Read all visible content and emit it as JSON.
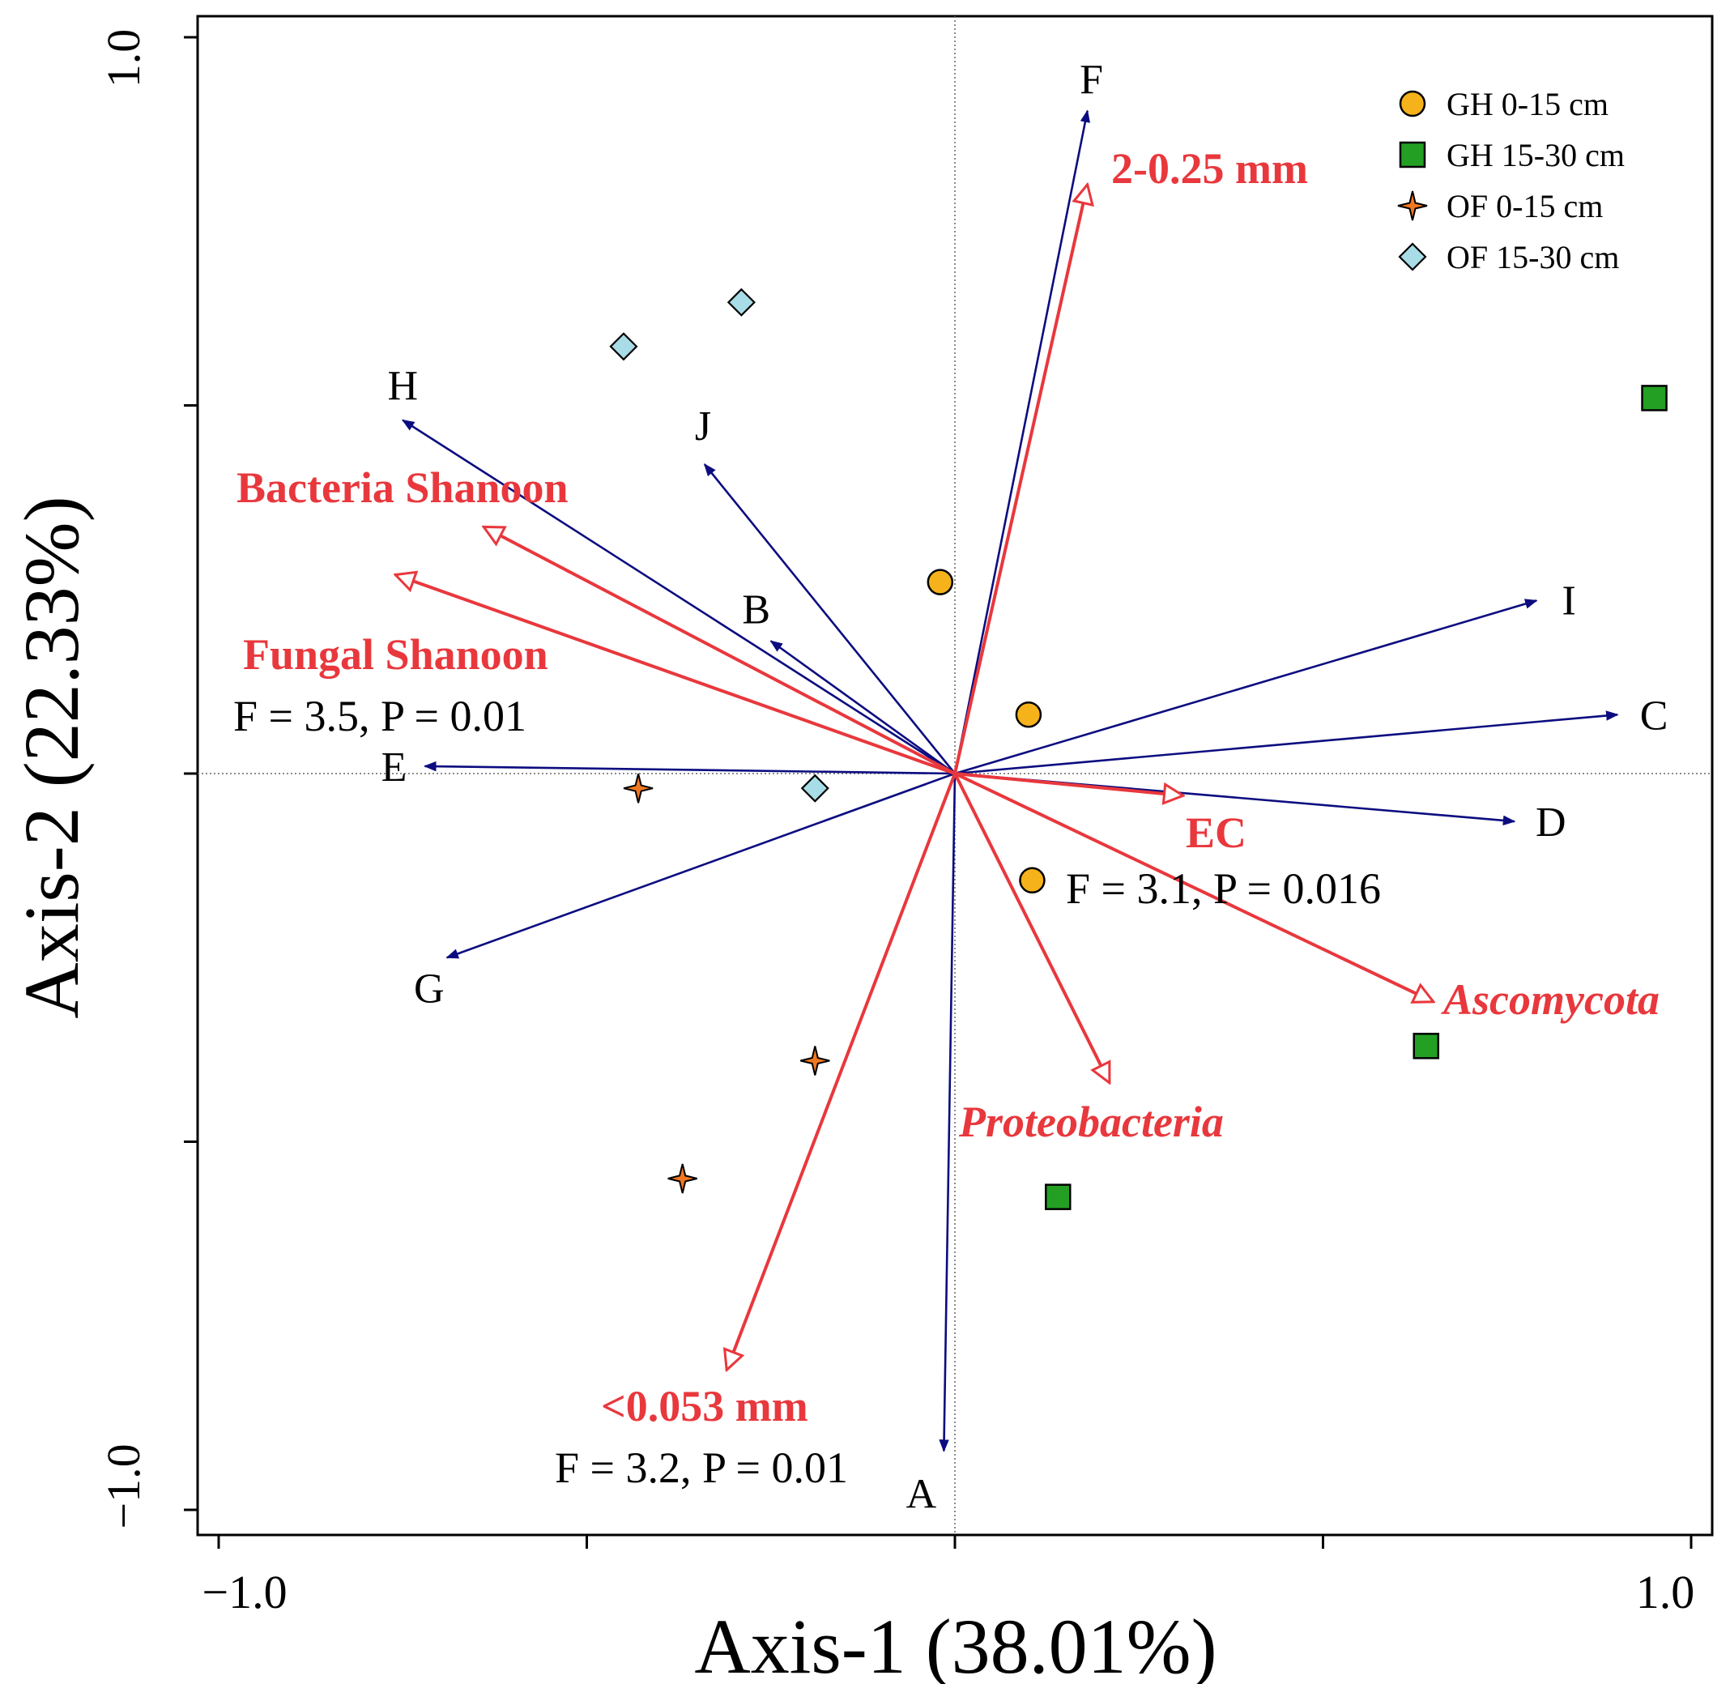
{
  "colors": {
    "species_vector": "#0c0c80",
    "env_vector": "#e8383d",
    "gh_0_15": "#f5b21a",
    "gh_15_30": "#23a023",
    "of_0_15": "#f07820",
    "of_15_30": "#a8dce6"
  },
  "chart_data": {
    "type": "scatter",
    "subtype": "ordination-biplot",
    "title": "",
    "xlabel": "Axis-1 (38.01%)",
    "ylabel": "Axis-2 (22.33%)",
    "xlim": [
      -1.0,
      1.0
    ],
    "ylim": [
      -1.0,
      1.0
    ],
    "x_tick_labels": [
      {
        "value": -1.0,
        "label": "−1.0"
      },
      {
        "value": 1.0,
        "label": "1.0"
      }
    ],
    "y_tick_labels": [
      {
        "value": 1.0,
        "label": "1.0"
      },
      {
        "value": -1.0,
        "label": "−1.0"
      }
    ],
    "x_ticks": [
      -1.0,
      -0.5,
      0.0,
      0.5,
      1.0
    ],
    "y_ticks": [
      1.0,
      0.5,
      0.0,
      -0.5,
      -1.0
    ],
    "reference_lines": {
      "x": 0,
      "y": 0,
      "style": "dotted"
    },
    "legend": {
      "position": "top-right",
      "entries": [
        {
          "label": "GH 0-15 cm",
          "marker": "circle",
          "color_key": "gh_0_15"
        },
        {
          "label": "GH 15-30 cm",
          "marker": "square",
          "color_key": "gh_15_30"
        },
        {
          "label": "OF 0-15 cm",
          "marker": "star",
          "color_key": "of_0_15"
        },
        {
          "label": "OF 15-30 cm",
          "marker": "diamond",
          "color_key": "of_15_30"
        }
      ]
    },
    "series": [
      {
        "name": "GH 0-15 cm",
        "marker": "circle",
        "color_key": "gh_0_15",
        "points": [
          {
            "x": -0.02,
            "y": 0.26
          },
          {
            "x": 0.1,
            "y": 0.08
          },
          {
            "x": 0.105,
            "y": -0.145
          }
        ]
      },
      {
        "name": "GH 15-30 cm",
        "marker": "square",
        "color_key": "gh_15_30",
        "points": [
          {
            "x": 0.95,
            "y": 0.51
          },
          {
            "x": 0.64,
            "y": -0.37
          },
          {
            "x": 0.14,
            "y": -0.575
          }
        ]
      },
      {
        "name": "OF 0-15 cm",
        "marker": "star",
        "color_key": "of_0_15",
        "points": [
          {
            "x": -0.43,
            "y": -0.02
          },
          {
            "x": -0.19,
            "y": -0.39
          },
          {
            "x": -0.37,
            "y": -0.55
          }
        ]
      },
      {
        "name": "OF 15-30 cm",
        "marker": "diamond",
        "color_key": "of_15_30",
        "points": [
          {
            "x": -0.45,
            "y": 0.58
          },
          {
            "x": -0.29,
            "y": 0.64
          },
          {
            "x": -0.19,
            "y": -0.02
          }
        ]
      }
    ],
    "species_vectors": [
      {
        "label": "A",
        "x": -0.015,
        "y": -0.92
      },
      {
        "label": "B",
        "x": -0.25,
        "y": 0.18
      },
      {
        "label": "C",
        "x": 0.9,
        "y": 0.08
      },
      {
        "label": "D",
        "x": 0.76,
        "y": -0.065
      },
      {
        "label": "E",
        "x": -0.72,
        "y": 0.01
      },
      {
        "label": "F",
        "x": 0.18,
        "y": 0.9
      },
      {
        "label": "G",
        "x": -0.69,
        "y": -0.25
      },
      {
        "label": "H",
        "x": -0.75,
        "y": 0.48
      },
      {
        "label": "I",
        "x": 0.79,
        "y": 0.235
      },
      {
        "label": "J",
        "x": -0.34,
        "y": 0.42
      }
    ],
    "environmental_vectors": [
      {
        "label": "2-0.25 mm",
        "italic": false,
        "x": 0.18,
        "y": 0.8
      },
      {
        "label": "Bacteria Shanoon",
        "italic": false,
        "x": -0.64,
        "y": 0.335
      },
      {
        "label": "Fungal Shanoon",
        "italic": false,
        "x": -0.76,
        "y": 0.27
      },
      {
        "label": "EC",
        "italic": false,
        "x": 0.31,
        "y": -0.03
      },
      {
        "label": "Ascomycota",
        "italic": true,
        "x": 0.65,
        "y": -0.31
      },
      {
        "label": "Proteobacteria",
        "italic": true,
        "x": 0.21,
        "y": -0.42
      },
      {
        "label": "<0.053 mm",
        "italic": false,
        "x": -0.31,
        "y": -0.81
      }
    ],
    "annotations": [
      {
        "text": "F = 3.5, P = 0.01",
        "near": "Fungal Shanoon"
      },
      {
        "text": "F = 3.1, P = 0.016",
        "near": "EC"
      },
      {
        "text": "F = 3.2, P = 0.01",
        "near": "<0.053 mm"
      }
    ]
  }
}
